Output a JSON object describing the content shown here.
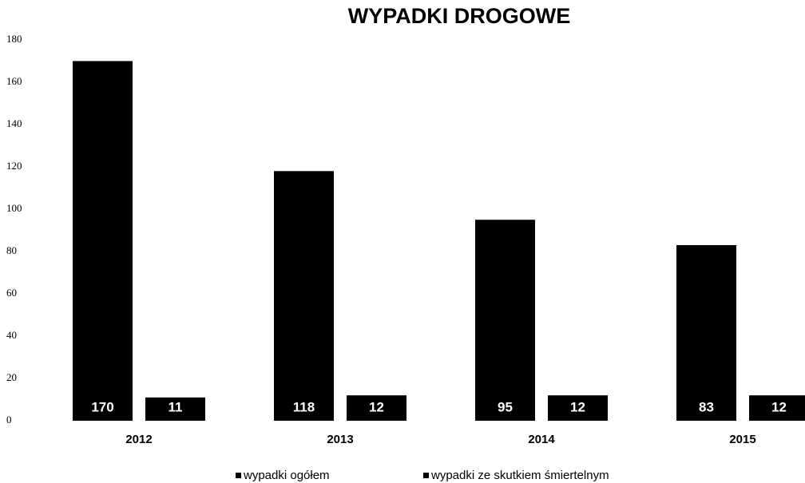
{
  "chart_data": {
    "type": "bar",
    "title": "WYPADKI  DROGOWE",
    "categories": [
      "2012",
      "2013",
      "2014",
      "2015"
    ],
    "series": [
      {
        "name": "wypadki ogółem",
        "color": "#000000",
        "values": [
          170,
          118,
          95,
          83
        ]
      },
      {
        "name": "wypadki ze skutkiem śmiertelnym",
        "color": "#000000",
        "values": [
          11,
          12,
          12,
          12
        ]
      }
    ],
    "ylim": [
      0,
      180
    ],
    "yticks": [
      0,
      20,
      40,
      60,
      80,
      100,
      120,
      140,
      160,
      180
    ],
    "grid": false,
    "legend": "bottom"
  }
}
